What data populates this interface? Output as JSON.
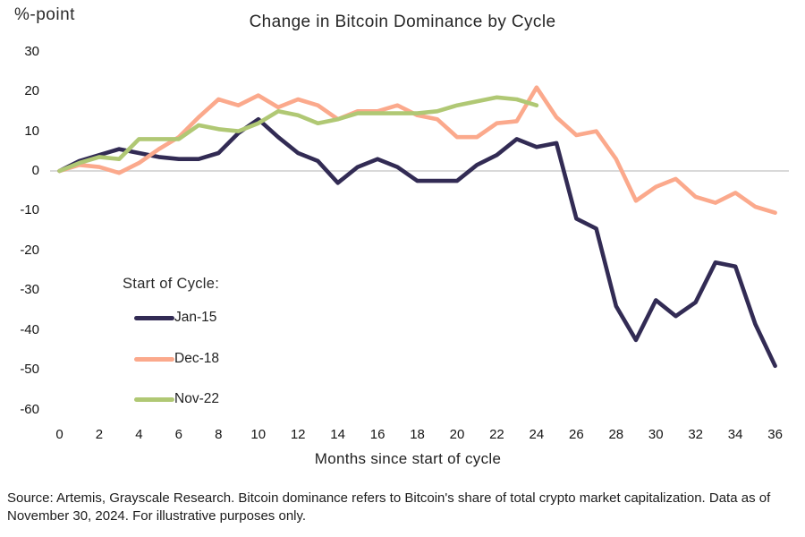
{
  "footer": {
    "source_note": "Source: Artemis, Grayscale Research. Bitcoin dominance refers to Bitcoin's share of total crypto market capitalization. Data as of November 30, 2024. For illustrative purposes only."
  },
  "chart_data": {
    "type": "line",
    "title": "Change in Bitcoin Dominance by Cycle",
    "ylabel": "%-point",
    "xlabel": "Months since start of cycle",
    "xlim": [
      0,
      36
    ],
    "ylim": [
      -60,
      30
    ],
    "x_ticks": [
      0,
      2,
      4,
      6,
      8,
      10,
      12,
      14,
      16,
      18,
      20,
      22,
      24,
      26,
      28,
      30,
      32,
      34,
      36
    ],
    "y_ticks": [
      30,
      20,
      10,
      0,
      -10,
      -20,
      -30,
      -40,
      -50,
      -60
    ],
    "grid": "horizontal zero line only",
    "zero_line_color": "#d9d9d9",
    "legend_title": "Start of Cycle:",
    "legend_position": "inside lower-left",
    "series": [
      {
        "name": "Jan-15",
        "color": "#322b54",
        "months": [
          0,
          1,
          2,
          3,
          4,
          5,
          6,
          7,
          8,
          9,
          10,
          11,
          12,
          13,
          14,
          15,
          16,
          17,
          18,
          19,
          20,
          21,
          22,
          23,
          24,
          25,
          26,
          27,
          28,
          29,
          30,
          31,
          32,
          33,
          34,
          35,
          36
        ],
        "values": [
          0,
          2.5,
          4,
          5.5,
          4.5,
          3.5,
          3,
          3,
          4.5,
          9.5,
          13,
          8.5,
          4.5,
          2.5,
          -3,
          1,
          3,
          1,
          -2.5,
          -2.5,
          -2.5,
          1.5,
          4,
          8,
          6,
          7,
          -12,
          -14.5,
          -34,
          -42.5,
          -32.5,
          -36.5,
          -33,
          -23,
          -24,
          -38.5,
          -49
        ]
      },
      {
        "name": "Dec-18",
        "color": "#fba98c",
        "months": [
          0,
          1,
          2,
          3,
          4,
          5,
          6,
          7,
          8,
          9,
          10,
          11,
          12,
          13,
          14,
          15,
          16,
          17,
          18,
          19,
          20,
          21,
          22,
          23,
          24,
          25,
          26,
          27,
          28,
          29,
          30,
          31,
          32,
          33,
          34,
          35,
          36
        ],
        "values": [
          0,
          1.5,
          1,
          -0.5,
          2,
          5.5,
          8.5,
          13.5,
          18,
          16.5,
          19,
          16,
          18,
          16.5,
          13,
          15,
          15,
          16.5,
          14,
          13,
          8.5,
          8.5,
          12,
          12.5,
          21,
          13.5,
          9,
          10,
          3,
          -7.5,
          -4,
          -2,
          -6.5,
          -8,
          -5.5,
          -9,
          -10.5
        ]
      },
      {
        "name": "Nov-22",
        "color": "#b0c874",
        "months": [
          0,
          1,
          2,
          3,
          4,
          5,
          6,
          7,
          8,
          9,
          10,
          11,
          12,
          13,
          14,
          15,
          16,
          17,
          18,
          19,
          20,
          21,
          22,
          23,
          24
        ],
        "values": [
          0,
          2,
          3.5,
          3,
          8,
          8,
          8,
          11.5,
          10.5,
          10,
          12,
          15,
          14,
          12,
          13,
          14.5,
          14.5,
          14.5,
          14.5,
          15,
          16.5,
          17.5,
          18.5,
          18,
          16.5
        ]
      }
    ]
  }
}
